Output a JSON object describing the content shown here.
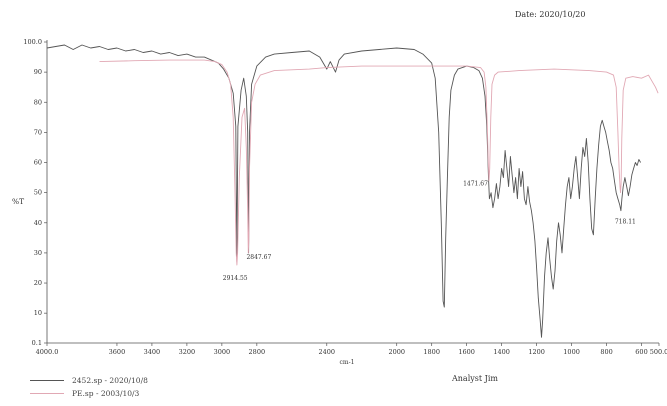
{
  "header": {
    "date_label": "Date: 2020/10/20"
  },
  "footer": {
    "analyst_label": "Analyst Jim"
  },
  "legend": {
    "items": [
      {
        "label": "2452.sp - 2020/10/8",
        "color": "#555555"
      },
      {
        "label": "PE.sp - 2003/10/3",
        "color": "#e1a8b4"
      }
    ]
  },
  "chart_data": {
    "type": "line",
    "xlabel": "cm-1",
    "ylabel": "%T",
    "xlim": [
      4000,
      500
    ],
    "ylim": [
      0.1,
      100
    ],
    "x_reversed": true,
    "grid": false,
    "legend_position": "bottom-left",
    "x_ticks": [
      {
        "value": 4000,
        "label": "4000.0"
      },
      {
        "value": 3600,
        "label": "3600"
      },
      {
        "value": 3400,
        "label": "3400"
      },
      {
        "value": 3200,
        "label": "3200"
      },
      {
        "value": 3000,
        "label": "3000"
      },
      {
        "value": 2800,
        "label": "2800"
      },
      {
        "value": 2400,
        "label": "2400"
      },
      {
        "value": 2000,
        "label": "2000"
      },
      {
        "value": 1800,
        "label": "1800"
      },
      {
        "value": 1600,
        "label": "1600"
      },
      {
        "value": 1400,
        "label": "1400"
      },
      {
        "value": 1200,
        "label": "1200"
      },
      {
        "value": 1000,
        "label": "1000"
      },
      {
        "value": 800,
        "label": "800"
      },
      {
        "value": 600,
        "label": "600"
      },
      {
        "value": 500,
        "label": "500.0"
      }
    ],
    "y_ticks": [
      {
        "value": 100,
        "label": "100.0"
      },
      {
        "value": 90,
        "label": "90"
      },
      {
        "value": 80,
        "label": "80"
      },
      {
        "value": 70,
        "label": "70"
      },
      {
        "value": 60,
        "label": "60"
      },
      {
        "value": 50,
        "label": "50"
      },
      {
        "value": 40,
        "label": "40"
      },
      {
        "value": 30,
        "label": "30"
      },
      {
        "value": 20,
        "label": "20"
      },
      {
        "value": 10,
        "label": "10"
      },
      {
        "value": 0.1,
        "label": "0.1"
      }
    ],
    "annotations": [
      {
        "label": "2914.55",
        "x": 2914.55,
        "y": 25
      },
      {
        "label": "2847.67",
        "x": 2847.67,
        "y": 28
      },
      {
        "label": "1471.67",
        "x": 1471.67,
        "y": 53
      },
      {
        "label": "718.11",
        "x": 718.11,
        "y": 43
      }
    ],
    "series": [
      {
        "name": "2452.sp - 2020/10/8",
        "color": "#555555",
        "points": [
          [
            4000,
            98
          ],
          [
            3950,
            98.5
          ],
          [
            3900,
            99
          ],
          [
            3850,
            97.5
          ],
          [
            3800,
            99
          ],
          [
            3750,
            98
          ],
          [
            3700,
            98.5
          ],
          [
            3650,
            97.5
          ],
          [
            3600,
            98
          ],
          [
            3550,
            97
          ],
          [
            3500,
            97.5
          ],
          [
            3450,
            96.5
          ],
          [
            3400,
            97
          ],
          [
            3350,
            96
          ],
          [
            3300,
            96.5
          ],
          [
            3250,
            95.5
          ],
          [
            3200,
            96
          ],
          [
            3150,
            95
          ],
          [
            3100,
            95
          ],
          [
            3060,
            94
          ],
          [
            3020,
            93
          ],
          [
            2990,
            91
          ],
          [
            2960,
            88
          ],
          [
            2935,
            83
          ],
          [
            2920,
            72
          ],
          [
            2914,
            27
          ],
          [
            2908,
            72
          ],
          [
            2890,
            84
          ],
          [
            2875,
            88
          ],
          [
            2860,
            82
          ],
          [
            2852,
            70
          ],
          [
            2847,
            30
          ],
          [
            2842,
            70
          ],
          [
            2830,
            86
          ],
          [
            2800,
            92
          ],
          [
            2750,
            95
          ],
          [
            2700,
            96
          ],
          [
            2600,
            96.5
          ],
          [
            2500,
            97
          ],
          [
            2440,
            95
          ],
          [
            2400,
            91
          ],
          [
            2380,
            93.5
          ],
          [
            2350,
            90
          ],
          [
            2330,
            94
          ],
          [
            2300,
            96
          ],
          [
            2200,
            97
          ],
          [
            2100,
            97.5
          ],
          [
            2000,
            98
          ],
          [
            1900,
            97.5
          ],
          [
            1850,
            96
          ],
          [
            1800,
            93
          ],
          [
            1780,
            88
          ],
          [
            1760,
            70
          ],
          [
            1745,
            40
          ],
          [
            1735,
            14
          ],
          [
            1728,
            12
          ],
          [
            1720,
            35
          ],
          [
            1710,
            55
          ],
          [
            1700,
            75
          ],
          [
            1690,
            84
          ],
          [
            1670,
            89
          ],
          [
            1650,
            91
          ],
          [
            1600,
            92
          ],
          [
            1560,
            91.5
          ],
          [
            1530,
            90.5
          ],
          [
            1510,
            88
          ],
          [
            1495,
            82
          ],
          [
            1485,
            72
          ],
          [
            1475,
            55
          ],
          [
            1470,
            48
          ],
          [
            1460,
            50
          ],
          [
            1450,
            45
          ],
          [
            1440,
            48
          ],
          [
            1430,
            53
          ],
          [
            1420,
            48
          ],
          [
            1410,
            52
          ],
          [
            1400,
            58
          ],
          [
            1390,
            55
          ],
          [
            1380,
            64
          ],
          [
            1370,
            58
          ],
          [
            1360,
            52
          ],
          [
            1350,
            62
          ],
          [
            1340,
            56
          ],
          [
            1330,
            50
          ],
          [
            1320,
            55
          ],
          [
            1310,
            48
          ],
          [
            1300,
            58
          ],
          [
            1290,
            52
          ],
          [
            1280,
            57
          ],
          [
            1270,
            48
          ],
          [
            1260,
            46
          ],
          [
            1250,
            52
          ],
          [
            1240,
            47
          ],
          [
            1230,
            44
          ],
          [
            1220,
            40
          ],
          [
            1210,
            34
          ],
          [
            1200,
            25
          ],
          [
            1190,
            15
          ],
          [
            1180,
            8
          ],
          [
            1172,
            2
          ],
          [
            1165,
            8
          ],
          [
            1155,
            22
          ],
          [
            1145,
            30
          ],
          [
            1135,
            35
          ],
          [
            1125,
            28
          ],
          [
            1115,
            22
          ],
          [
            1105,
            18
          ],
          [
            1095,
            24
          ],
          [
            1085,
            34
          ],
          [
            1075,
            40
          ],
          [
            1065,
            36
          ],
          [
            1055,
            30
          ],
          [
            1045,
            38
          ],
          [
            1035,
            46
          ],
          [
            1025,
            52
          ],
          [
            1015,
            55
          ],
          [
            1005,
            48
          ],
          [
            995,
            52
          ],
          [
            985,
            58
          ],
          [
            975,
            62
          ],
          [
            965,
            55
          ],
          [
            955,
            48
          ],
          [
            945,
            58
          ],
          [
            935,
            65
          ],
          [
            925,
            62
          ],
          [
            915,
            68
          ],
          [
            905,
            60
          ],
          [
            895,
            48
          ],
          [
            885,
            38
          ],
          [
            875,
            36
          ],
          [
            865,
            48
          ],
          [
            855,
            58
          ],
          [
            845,
            66
          ],
          [
            835,
            72
          ],
          [
            825,
            74
          ],
          [
            815,
            72
          ],
          [
            805,
            70
          ],
          [
            795,
            67
          ],
          [
            785,
            64
          ],
          [
            775,
            60
          ],
          [
            765,
            58
          ],
          [
            755,
            54
          ],
          [
            745,
            50
          ],
          [
            735,
            48
          ],
          [
            725,
            46
          ],
          [
            718,
            44
          ],
          [
            712,
            48
          ],
          [
            705,
            52
          ],
          [
            695,
            55
          ],
          [
            685,
            52
          ],
          [
            675,
            49
          ],
          [
            665,
            52
          ],
          [
            655,
            56
          ],
          [
            645,
            58
          ],
          [
            635,
            60
          ],
          [
            625,
            59
          ],
          [
            615,
            61
          ],
          [
            605,
            60
          ]
        ]
      },
      {
        "name": "PE.sp - 2003/10/3",
        "color": "#e1a8b4",
        "points": [
          [
            3700,
            93.5
          ],
          [
            3500,
            93.8
          ],
          [
            3300,
            94
          ],
          [
            3100,
            94
          ],
          [
            3040,
            93.5
          ],
          [
            3000,
            92.5
          ],
          [
            2970,
            90
          ],
          [
            2950,
            86
          ],
          [
            2935,
            75
          ],
          [
            2925,
            50
          ],
          [
            2918,
            30
          ],
          [
            2914,
            26
          ],
          [
            2910,
            30
          ],
          [
            2900,
            55
          ],
          [
            2885,
            75
          ],
          [
            2870,
            78
          ],
          [
            2860,
            65
          ],
          [
            2853,
            45
          ],
          [
            2849,
            30
          ],
          [
            2846,
            34
          ],
          [
            2842,
            58
          ],
          [
            2830,
            80
          ],
          [
            2810,
            86
          ],
          [
            2780,
            89
          ],
          [
            2700,
            90.5
          ],
          [
            2500,
            91
          ],
          [
            2400,
            91.5
          ],
          [
            2200,
            92
          ],
          [
            2000,
            92
          ],
          [
            1800,
            92
          ],
          [
            1700,
            92
          ],
          [
            1600,
            92
          ],
          [
            1520,
            91.5
          ],
          [
            1500,
            90
          ],
          [
            1490,
            85
          ],
          [
            1482,
            72
          ],
          [
            1476,
            60
          ],
          [
            1472,
            54
          ],
          [
            1468,
            58
          ],
          [
            1462,
            75
          ],
          [
            1455,
            86
          ],
          [
            1440,
            89
          ],
          [
            1420,
            90
          ],
          [
            1300,
            90.5
          ],
          [
            1100,
            91
          ],
          [
            900,
            90.5
          ],
          [
            800,
            90
          ],
          [
            760,
            89
          ],
          [
            745,
            85
          ],
          [
            735,
            70
          ],
          [
            728,
            58
          ],
          [
            723,
            52
          ],
          [
            720,
            50
          ],
          [
            717,
            53
          ],
          [
            713,
            68
          ],
          [
            705,
            84
          ],
          [
            690,
            88
          ],
          [
            650,
            88.5
          ],
          [
            600,
            88
          ],
          [
            560,
            89
          ],
          [
            540,
            87
          ],
          [
            520,
            85
          ],
          [
            505,
            83
          ]
        ]
      }
    ]
  }
}
